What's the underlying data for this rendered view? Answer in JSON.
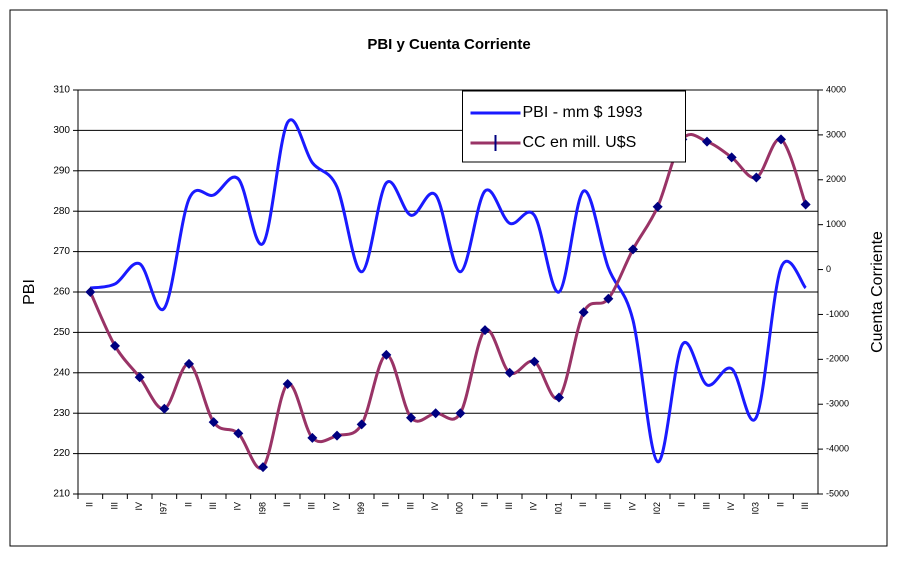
{
  "chart_data": {
    "type": "line",
    "title": "PBI y Cuenta Corriente",
    "ylabel": "PBI",
    "y2label": "Cuenta Corriente",
    "categories": [
      "II",
      "III",
      "IV",
      "I97",
      "II",
      "III",
      "IV",
      "I98",
      "II",
      "III",
      "IV",
      "I99",
      "II",
      "III",
      "IV",
      "I00",
      "II",
      "III",
      "IV",
      "I01",
      "II",
      "III",
      "IV",
      "I02",
      "II",
      "III",
      "IV",
      "I03",
      "II",
      "III"
    ],
    "series": [
      {
        "name": "PBI - mm $ 1993",
        "color": "#1a1aff",
        "axis": "y",
        "values": [
          261,
          262,
          267,
          256,
          283,
          284,
          288,
          272,
          302,
          292,
          286,
          265,
          287,
          279,
          284,
          265,
          285,
          277,
          279,
          260,
          285,
          266,
          253,
          218,
          247,
          237,
          241,
          229,
          266,
          261
        ]
      },
      {
        "name": "CC en mill. U$S",
        "color": "#993366",
        "marker_color": "#000080",
        "axis": "y2",
        "values": [
          -500,
          -1700,
          -2400,
          -3100,
          -2100,
          -3400,
          -3650,
          -4400,
          -2550,
          -3750,
          -3700,
          -3450,
          -1900,
          -3300,
          -3200,
          -3200,
          -1350,
          -2300,
          -2050,
          -2850,
          -950,
          -650,
          450,
          1400,
          2900,
          2850,
          2500,
          2050,
          2900,
          1450
        ]
      }
    ],
    "ylim": [
      210,
      310
    ],
    "yticks": [
      210,
      220,
      230,
      240,
      250,
      260,
      270,
      280,
      290,
      300,
      310
    ],
    "y2lim": [
      -5000,
      4000
    ],
    "y2ticks": [
      -5000,
      -4000,
      -3000,
      -2000,
      -1000,
      0,
      1000,
      2000,
      3000,
      4000
    ],
    "grid": true,
    "legend": "upper center"
  }
}
